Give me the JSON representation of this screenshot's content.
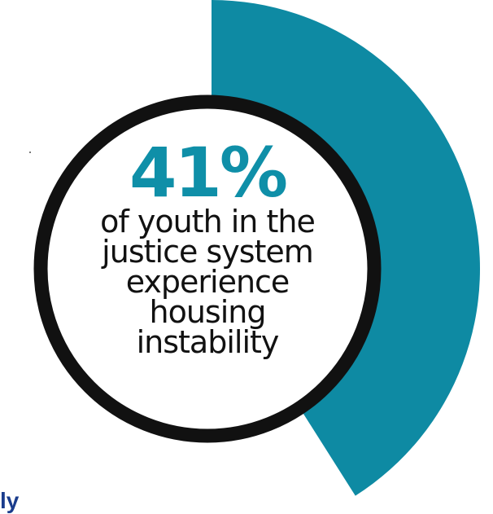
{
  "chart_data": {
    "type": "pie",
    "values": [
      41
    ],
    "max": 100,
    "unit": "%",
    "value_label": "41%",
    "colors": {
      "fill": "#0e8aa3",
      "ring": "#111111",
      "percent_text": "#0f8fa8",
      "background": "#ffffff"
    }
  },
  "stat": {
    "percent": "41%",
    "caption_lines": [
      "of youth in the",
      "justice system",
      "experience",
      "housing",
      "instability"
    ]
  },
  "footer": {
    "fragment": "ly"
  }
}
